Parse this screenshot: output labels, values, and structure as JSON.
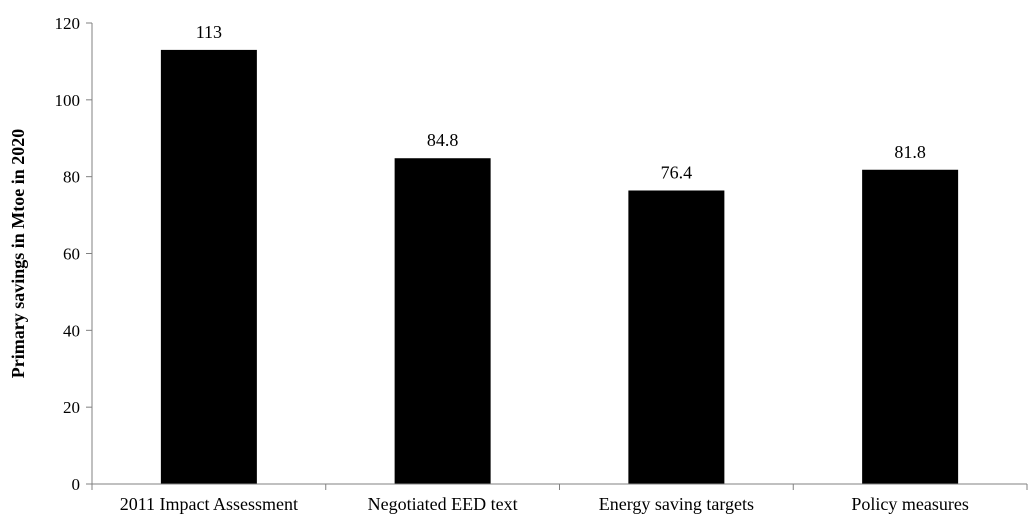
{
  "chart_data": {
    "type": "bar",
    "title": "",
    "xlabel": "",
    "ylabel": "Primary savings in Mtoe in 2020",
    "ylim": [
      0,
      120
    ],
    "yticks": [
      0,
      20,
      40,
      60,
      80,
      100,
      120
    ],
    "grid": false,
    "legend": "none",
    "bar_color": "#000000",
    "categories": [
      "2011 Impact Assessment",
      "Negotiated EED text",
      "Energy saving targets",
      "Policy measures"
    ],
    "values": [
      113,
      84.8,
      76.4,
      81.8
    ],
    "data_labels": [
      "113",
      "84.8",
      "76.4",
      "81.8"
    ]
  }
}
